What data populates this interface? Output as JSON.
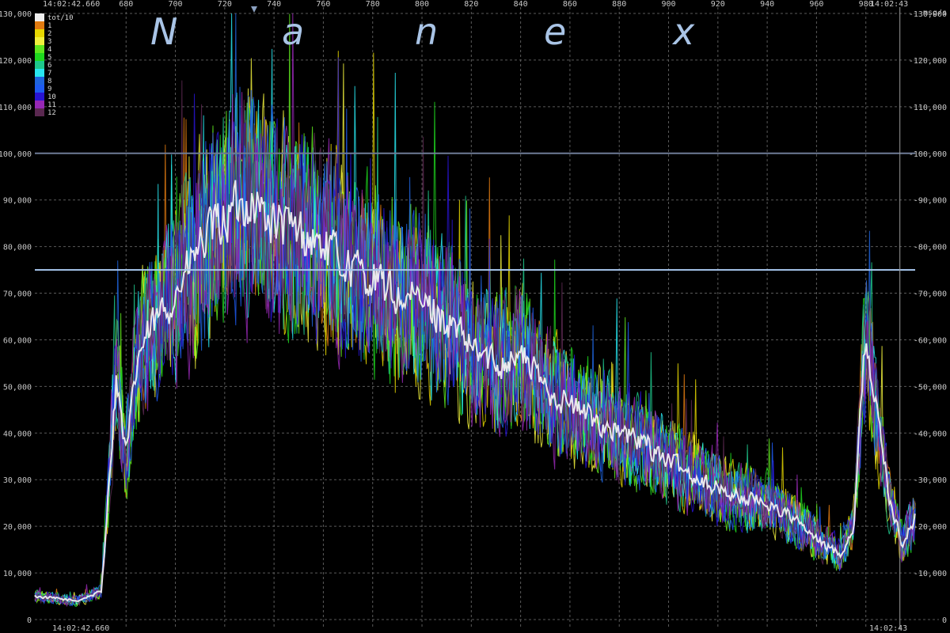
{
  "chart_data": {
    "type": "line",
    "brand_letters": [
      "N",
      "a",
      "n",
      "e",
      "x"
    ],
    "timestamps": {
      "top_left": "14:02:42.660",
      "top_right": "14:02:43",
      "bottom_left": "14:02:42.660",
      "bottom_right": "14:02:43"
    },
    "unit_label": "msg/s",
    "xlim": [
      643,
      1000
    ],
    "x_ticks": [
      680,
      700,
      720,
      740,
      760,
      780,
      800,
      820,
      840,
      860,
      880,
      900,
      920,
      940,
      960,
      980
    ],
    "ylim": [
      0,
      130000
    ],
    "y_ticks": [
      0,
      10000,
      20000,
      30000,
      40000,
      50000,
      60000,
      70000,
      80000,
      90000,
      100000,
      110000,
      120000,
      130000
    ],
    "y_tick_labels_left": [
      "0",
      "10,000",
      "20,000",
      "30,000",
      "40,000",
      "50,000",
      "60,000",
      "70,000",
      "80,000",
      "90,000",
      "100,000",
      "110,000",
      "120,000",
      "130,000"
    ],
    "y_tick_labels_right": [
      "0",
      "-10,000",
      "-20,000",
      "-30,000",
      "-40,000",
      "-50,000",
      "-60,000",
      "-70,000",
      "-80,000",
      "-90,000",
      "-100,000",
      "-110,000",
      "-120,000",
      "-130,000"
    ],
    "grid": true,
    "legend_position": "top-left",
    "reference_lines": [
      {
        "y": 100000,
        "color": "#6e7b96"
      },
      {
        "y": 75000,
        "color": "#a9c8f0"
      }
    ],
    "cursor_x": 980,
    "envelope_points": [
      [
        643,
        5000
      ],
      [
        660,
        4000
      ],
      [
        670,
        6000
      ],
      [
        676,
        52000
      ],
      [
        680,
        35000
      ],
      [
        685,
        57000
      ],
      [
        690,
        62000
      ],
      [
        700,
        70000
      ],
      [
        710,
        80000
      ],
      [
        720,
        86000
      ],
      [
        730,
        90000
      ],
      [
        740,
        85000
      ],
      [
        750,
        83000
      ],
      [
        760,
        80000
      ],
      [
        770,
        76000
      ],
      [
        780,
        73000
      ],
      [
        790,
        69000
      ],
      [
        800,
        68000
      ],
      [
        810,
        64000
      ],
      [
        820,
        58000
      ],
      [
        830,
        55000
      ],
      [
        840,
        57000
      ],
      [
        850,
        50000
      ],
      [
        860,
        46000
      ],
      [
        870,
        43000
      ],
      [
        880,
        40000
      ],
      [
        890,
        38000
      ],
      [
        900,
        34000
      ],
      [
        910,
        31000
      ],
      [
        920,
        28000
      ],
      [
        930,
        26000
      ],
      [
        940,
        25000
      ],
      [
        950,
        22000
      ],
      [
        960,
        17000
      ],
      [
        970,
        14000
      ],
      [
        975,
        20000
      ],
      [
        980,
        62000
      ],
      [
        985,
        42000
      ],
      [
        990,
        25000
      ],
      [
        995,
        16000
      ],
      [
        1000,
        22000
      ]
    ],
    "series": [
      {
        "name": "tot/10",
        "color": "#f0f0f0",
        "amp": 0.09
      },
      {
        "name": "1",
        "color": "#e07a10",
        "amp": 0.3
      },
      {
        "name": "2",
        "color": "#e6d700",
        "amp": 0.36
      },
      {
        "name": "3",
        "color": "#f0f03c",
        "amp": 0.36
      },
      {
        "name": "4",
        "color": "#5fe61e",
        "amp": 0.36
      },
      {
        "name": "5",
        "color": "#1ed81e",
        "amp": 0.36
      },
      {
        "name": "6",
        "color": "#1ec88c",
        "amp": 0.34
      },
      {
        "name": "7",
        "color": "#28e6f0",
        "amp": 0.34
      },
      {
        "name": "8",
        "color": "#1e64dc",
        "amp": 0.34
      },
      {
        "name": "9",
        "color": "#1e5af0",
        "amp": 0.34
      },
      {
        "name": "10",
        "color": "#2814d2",
        "amp": 0.34
      },
      {
        "name": "11",
        "color": "#9628b4",
        "amp": 0.38
      },
      {
        "name": "12",
        "color": "#5a2850",
        "amp": 0.32
      }
    ]
  }
}
